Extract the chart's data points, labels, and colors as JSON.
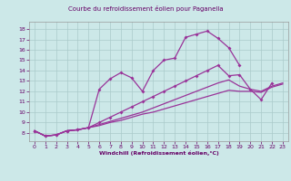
{
  "title": "Courbe du refroidissement éolien pour Paganella",
  "xlabel": "Windchill (Refroidissement éolien,°C)",
  "bg_color": "#cce8e8",
  "line_color": "#993399",
  "grid_color": "#aacaca",
  "xlim": [
    -0.5,
    23.5
  ],
  "ylim": [
    7.2,
    18.7
  ],
  "yticks": [
    8,
    9,
    10,
    11,
    12,
    13,
    14,
    15,
    16,
    17,
    18
  ],
  "xticks": [
    0,
    1,
    2,
    3,
    4,
    5,
    6,
    7,
    8,
    9,
    10,
    11,
    12,
    13,
    14,
    15,
    16,
    17,
    18,
    19,
    20,
    21,
    22,
    23
  ],
  "line1_x": [
    0,
    1,
    2,
    3,
    4,
    5,
    6,
    7,
    8,
    9,
    10,
    11,
    12,
    13,
    14,
    15,
    16,
    17,
    18,
    19
  ],
  "line1_y": [
    8.2,
    7.7,
    7.8,
    8.2,
    8.3,
    8.5,
    12.2,
    13.2,
    13.8,
    13.3,
    12.0,
    14.0,
    15.0,
    15.2,
    17.2,
    17.5,
    17.8,
    17.1,
    16.2,
    14.5
  ],
  "line2_x": [
    0,
    1,
    2,
    3,
    4,
    5,
    6,
    7,
    8,
    9,
    10,
    11,
    12,
    13,
    14,
    15,
    16,
    17,
    18,
    19,
    20,
    21,
    22
  ],
  "line2_y": [
    8.2,
    7.7,
    7.8,
    8.2,
    8.3,
    8.5,
    9.0,
    9.5,
    10.0,
    10.5,
    11.0,
    11.5,
    12.0,
    12.5,
    13.0,
    13.5,
    14.0,
    14.5,
    13.5,
    13.6,
    12.2,
    11.2,
    12.8
  ],
  "line3_x": [
    0,
    1,
    2,
    3,
    4,
    5,
    6,
    7,
    8,
    9,
    10,
    11,
    12,
    13,
    14,
    15,
    16,
    17,
    18,
    19,
    20,
    21,
    22,
    23
  ],
  "line3_y": [
    8.2,
    7.7,
    7.8,
    8.2,
    8.3,
    8.5,
    8.8,
    9.1,
    9.4,
    9.7,
    10.0,
    10.4,
    10.8,
    11.2,
    11.6,
    12.0,
    12.4,
    12.8,
    13.1,
    12.5,
    12.2,
    12.0,
    12.5,
    12.8
  ],
  "line4_x": [
    0,
    1,
    2,
    3,
    4,
    5,
    6,
    7,
    8,
    9,
    10,
    11,
    12,
    13,
    14,
    15,
    16,
    17,
    18,
    19,
    20,
    21,
    22,
    23
  ],
  "line4_y": [
    8.2,
    7.7,
    7.8,
    8.2,
    8.3,
    8.5,
    8.7,
    9.0,
    9.2,
    9.5,
    9.8,
    10.0,
    10.3,
    10.6,
    10.9,
    11.2,
    11.5,
    11.8,
    12.1,
    12.0,
    12.0,
    11.9,
    12.4,
    12.7
  ]
}
